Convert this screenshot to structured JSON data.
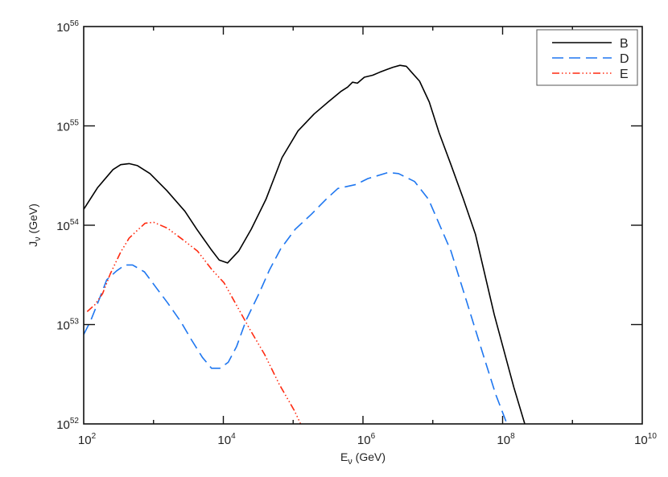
{
  "chart_data": {
    "type": "line",
    "title": "",
    "xlabel": "E_ν (GeV)",
    "ylabel": "J_ν (GeV)",
    "xscale": "log",
    "yscale": "log",
    "xlim": [
      100.0,
      10000000000.0
    ],
    "ylim": [
      1e+52,
      1e+56
    ],
    "grid": false,
    "legend_position": "upper right",
    "x_ticks": [
      {
        "base": "10",
        "exp": "2",
        "log": 2
      },
      {
        "base": "10",
        "exp": "4",
        "log": 4
      },
      {
        "base": "10",
        "exp": "6",
        "log": 6
      },
      {
        "base": "10",
        "exp": "8",
        "log": 8
      },
      {
        "base": "10",
        "exp": "10",
        "log": 10
      }
    ],
    "y_ticks": [
      {
        "base": "10",
        "exp": "52",
        "log": 52
      },
      {
        "base": "10",
        "exp": "53",
        "log": 53
      },
      {
        "base": "10",
        "exp": "54",
        "log": 54
      },
      {
        "base": "10",
        "exp": "55",
        "log": 55
      },
      {
        "base": "10",
        "exp": "56",
        "log": 56
      }
    ],
    "series": [
      {
        "name": "B",
        "color": "#000000",
        "style": "solid",
        "log_x": [
          2.0,
          2.2,
          2.42,
          2.53,
          2.65,
          2.77,
          2.95,
          3.19,
          3.45,
          3.62,
          3.82,
          3.94,
          4.06,
          4.22,
          4.4,
          4.61,
          4.84,
          5.07,
          5.3,
          5.5,
          5.69,
          5.78,
          5.85,
          5.92,
          6.02,
          6.14,
          6.24,
          6.35,
          6.43,
          6.53,
          6.62,
          6.81,
          6.95,
          7.09,
          7.26,
          7.44,
          7.61,
          7.88,
          8.16,
          8.39
        ],
        "log_y": [
          54.16,
          54.38,
          54.56,
          54.61,
          54.62,
          54.6,
          54.52,
          54.35,
          54.14,
          53.96,
          53.76,
          53.65,
          53.62,
          53.74,
          53.96,
          54.26,
          54.68,
          54.95,
          55.12,
          55.24,
          55.35,
          55.39,
          55.44,
          55.43,
          55.49,
          55.51,
          55.54,
          55.57,
          55.59,
          55.61,
          55.6,
          55.45,
          55.24,
          54.93,
          54.61,
          54.26,
          53.91,
          53.1,
          52.37,
          51.83
        ]
      },
      {
        "name": "D",
        "color": "#1f77f0",
        "style": "dashed",
        "log_x": [
          2.0,
          2.1,
          2.22,
          2.33,
          2.47,
          2.59,
          2.7,
          2.87,
          3.04,
          3.2,
          3.39,
          3.54,
          3.7,
          3.83,
          3.95,
          4.07,
          4.19,
          4.33,
          4.51,
          4.66,
          4.82,
          5.03,
          5.26,
          5.47,
          5.64,
          5.9,
          6.07,
          6.36,
          6.51,
          6.74,
          6.94,
          7.26,
          7.49,
          7.72,
          7.9,
          8.09
        ],
        "log_y": [
          52.9,
          53.04,
          53.25,
          53.45,
          53.54,
          53.6,
          53.6,
          53.53,
          53.37,
          53.22,
          53.03,
          52.85,
          52.67,
          52.56,
          52.56,
          52.62,
          52.78,
          53.05,
          53.31,
          53.55,
          53.76,
          53.96,
          54.11,
          54.26,
          54.37,
          54.41,
          54.47,
          54.53,
          54.52,
          54.44,
          54.26,
          53.74,
          53.22,
          52.7,
          52.3,
          51.95
        ]
      },
      {
        "name": "E",
        "color": "#ff2a10",
        "style": "dash-dot-dot-dot",
        "log_x": [
          2.05,
          2.16,
          2.27,
          2.38,
          2.53,
          2.65,
          2.77,
          2.88,
          3.0,
          3.2,
          3.41,
          3.63,
          3.84,
          4.01,
          4.2,
          4.39,
          4.59,
          4.8,
          5.02,
          5.12,
          5.2
        ],
        "log_y": [
          53.13,
          53.2,
          53.31,
          53.51,
          53.73,
          53.87,
          53.95,
          54.02,
          54.03,
          53.97,
          53.86,
          53.74,
          53.55,
          53.42,
          53.18,
          52.94,
          52.7,
          52.4,
          52.13,
          51.98,
          51.9
        ]
      }
    ]
  },
  "legend": {
    "items": [
      {
        "label": "B",
        "color": "#000000",
        "style": "solid"
      },
      {
        "label": "D",
        "color": "#1f77f0",
        "style": "dashed"
      },
      {
        "label": "E",
        "color": "#ff2a10",
        "style": "dash-dot-dot-dot"
      }
    ]
  },
  "axes": {
    "x_label_main": "E",
    "x_label_sub": "ν",
    "x_label_unit": " (GeV)",
    "y_label_main": "J",
    "y_label_sub": "ν",
    "y_label_unit": " (GeV)"
  }
}
